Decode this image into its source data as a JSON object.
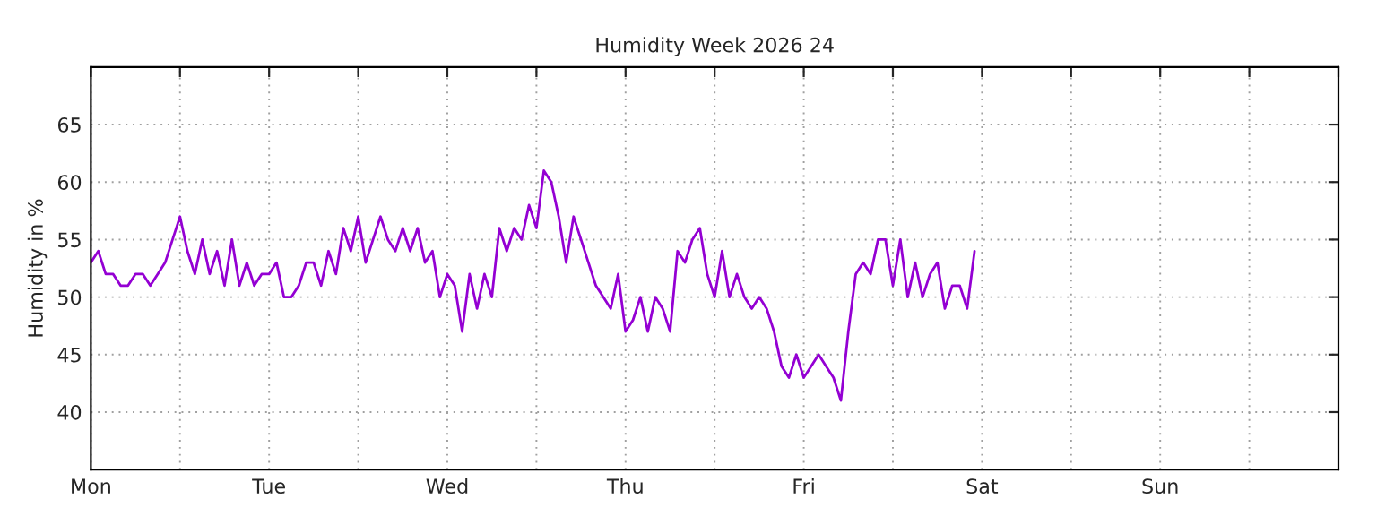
{
  "chart_data": {
    "type": "line",
    "title": "Humidity Week 2026 24",
    "ylabel": "Humidity in %",
    "ylim": [
      35,
      70
    ],
    "yticks": [
      40,
      45,
      50,
      55,
      60,
      65
    ],
    "grid": true,
    "marker": "none",
    "line_style": "solid",
    "categories": [
      "Mon",
      null,
      null,
      null,
      null,
      null,
      null,
      null,
      null,
      null,
      null,
      null,
      null,
      null,
      null,
      null,
      null,
      null,
      null,
      null,
      null,
      null,
      null,
      null,
      "Tue",
      null,
      null,
      null,
      null,
      null,
      null,
      null,
      null,
      null,
      null,
      null,
      null,
      null,
      null,
      null,
      null,
      null,
      null,
      null,
      null,
      null,
      null,
      null,
      "Wed",
      null,
      null,
      null,
      null,
      null,
      null,
      null,
      null,
      null,
      null,
      null,
      null,
      null,
      null,
      null,
      null,
      null,
      null,
      null,
      null,
      null,
      null,
      null,
      "Thu",
      null,
      null,
      null,
      null,
      null,
      null,
      null,
      null,
      null,
      null,
      null,
      null,
      null,
      null,
      null,
      null,
      null,
      null,
      null,
      null,
      null,
      null,
      null,
      "Fri",
      null,
      null,
      null,
      null,
      null,
      null,
      null,
      null,
      null,
      null,
      null,
      null,
      null,
      null,
      null,
      null,
      null,
      null,
      null,
      null,
      null,
      null,
      null,
      "Sat",
      null,
      null,
      null,
      null,
      null,
      null,
      null,
      null,
      null,
      null,
      null,
      null,
      null,
      null,
      null,
      null,
      null,
      null,
      null,
      null,
      null,
      null,
      null,
      "Sun",
      null,
      null,
      null,
      null,
      null,
      null,
      null,
      null,
      null,
      null,
      null,
      null,
      null,
      null,
      null,
      null,
      null,
      null,
      null,
      null,
      null,
      null,
      null,
      null
    ],
    "series": [
      {
        "color": "#9400d3",
        "values": [
          53,
          54,
          52,
          52,
          51,
          51,
          52,
          52,
          51,
          52,
          53,
          55,
          57,
          54,
          52,
          55,
          52,
          54,
          51,
          55,
          51,
          53,
          51,
          52,
          52,
          53,
          50,
          50,
          51,
          53,
          53,
          51,
          54,
          52,
          56,
          54,
          57,
          53,
          55,
          57,
          55,
          54,
          56,
          54,
          56,
          53,
          54,
          50,
          52,
          51,
          47,
          52,
          49,
          52,
          50,
          56,
          54,
          56,
          55,
          58,
          56,
          61,
          60,
          57,
          53,
          57,
          55,
          53,
          51,
          50,
          49,
          52,
          47,
          48,
          50,
          47,
          50,
          49,
          47,
          54,
          53,
          55,
          56,
          52,
          50,
          54,
          50,
          52,
          50,
          49,
          50,
          49,
          47,
          44,
          43,
          45,
          43,
          44,
          45,
          44,
          43,
          41,
          47,
          52,
          53,
          52,
          55,
          55,
          51,
          55,
          50,
          53,
          50,
          52,
          53,
          49,
          51,
          51,
          49,
          54,
          null,
          null,
          null,
          null,
          null,
          null,
          null,
          null,
          null,
          null,
          null,
          null,
          null,
          null,
          null,
          null,
          null,
          null,
          null,
          null,
          null,
          null,
          null,
          null,
          null,
          null,
          null,
          null,
          null,
          null,
          null,
          null,
          null,
          null,
          null,
          null,
          null,
          null,
          null,
          null,
          null,
          null,
          null,
          null,
          null,
          null,
          null,
          null,
          null
        ]
      }
    ]
  }
}
